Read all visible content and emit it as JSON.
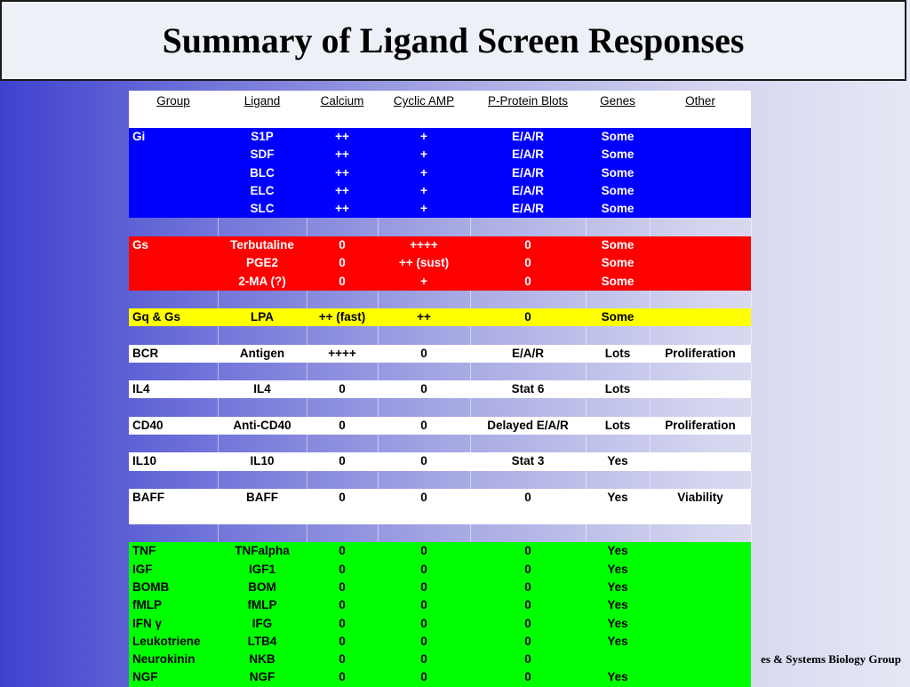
{
  "title": "Summary of Ligand Screen Responses",
  "footer": "es & Systems Biology Group",
  "headers": [
    "Group",
    "Ligand",
    "Calcium",
    "Cyclic AMP",
    "P-Protein Blots",
    "Genes",
    "Other"
  ],
  "sections": [
    {
      "color": "blue",
      "rows": [
        [
          "Gi",
          "S1P",
          "++",
          "+",
          "E/A/R",
          "Some",
          ""
        ],
        [
          "",
          "SDF",
          "++",
          "+",
          "E/A/R",
          "Some",
          ""
        ],
        [
          "",
          "BLC",
          "++",
          "+",
          "E/A/R",
          "Some",
          ""
        ],
        [
          "",
          "ELC",
          "++",
          "+",
          "E/A/R",
          "Some",
          ""
        ],
        [
          "",
          "SLC",
          "++",
          "+",
          "E/A/R",
          "Some",
          ""
        ]
      ]
    },
    {
      "color": "red",
      "rows": [
        [
          "Gs",
          "Terbutaline",
          "0",
          "++++",
          "0",
          "Some",
          ""
        ],
        [
          "",
          "PGE2",
          "0",
          "++ (sust)",
          "0",
          "Some",
          ""
        ],
        [
          "",
          "2-MA (?)",
          "0",
          "+",
          "0",
          "Some",
          ""
        ]
      ]
    },
    {
      "color": "yellow",
      "rows": [
        [
          "Gq & Gs",
          "LPA",
          "++ (fast)",
          "++",
          "0",
          "Some",
          ""
        ]
      ]
    },
    {
      "color": "white",
      "rows": [
        [
          "BCR",
          "Antigen",
          "++++",
          "0",
          "E/A/R",
          "Lots",
          "Proliferation"
        ]
      ]
    },
    {
      "color": "white",
      "rows": [
        [
          "IL4",
          "IL4",
          "0",
          "0",
          "Stat 6",
          "Lots",
          ""
        ]
      ]
    },
    {
      "color": "white",
      "rows": [
        [
          "CD40",
          "Anti-CD40",
          "0",
          "0",
          "Delayed E/A/R",
          "Lots",
          "Proliferation"
        ]
      ]
    },
    {
      "color": "white",
      "rows": [
        [
          "IL10",
          "IL10",
          "0",
          "0",
          "Stat 3",
          "Yes",
          ""
        ]
      ]
    },
    {
      "color": "white-tall",
      "rows": [
        [
          "BAFF",
          "BAFF",
          "0",
          "0",
          "0",
          "Yes",
          "Viability"
        ]
      ]
    },
    {
      "color": "green",
      "rows": [
        [
          "TNF",
          "TNFalpha",
          "0",
          "0",
          "0",
          "Yes",
          ""
        ],
        [
          "IGF",
          "IGF1",
          "0",
          "0",
          "0",
          "Yes",
          ""
        ],
        [
          "BOMB",
          "BOM",
          "0",
          "0",
          "0",
          "Yes",
          ""
        ],
        [
          "fMLP",
          "fMLP",
          "0",
          "0",
          "0",
          "Yes",
          ""
        ],
        [
          "IFN γ",
          "IFG",
          "0",
          "0",
          "0",
          "Yes",
          ""
        ],
        [
          "Leukotriene",
          "LTB4",
          "0",
          "0",
          "0",
          "Yes",
          ""
        ],
        [
          "Neurokinin",
          "NKB",
          "0",
          "0",
          "0",
          "",
          ""
        ],
        [
          "NGF",
          "NGF",
          "0",
          "0",
          "0",
          "Yes",
          ""
        ]
      ]
    }
  ],
  "colors": {
    "blue": "#0000ff",
    "red": "#ff0000",
    "yellow": "#ffff00",
    "white": "#ffffff",
    "green": "#00ff00"
  }
}
